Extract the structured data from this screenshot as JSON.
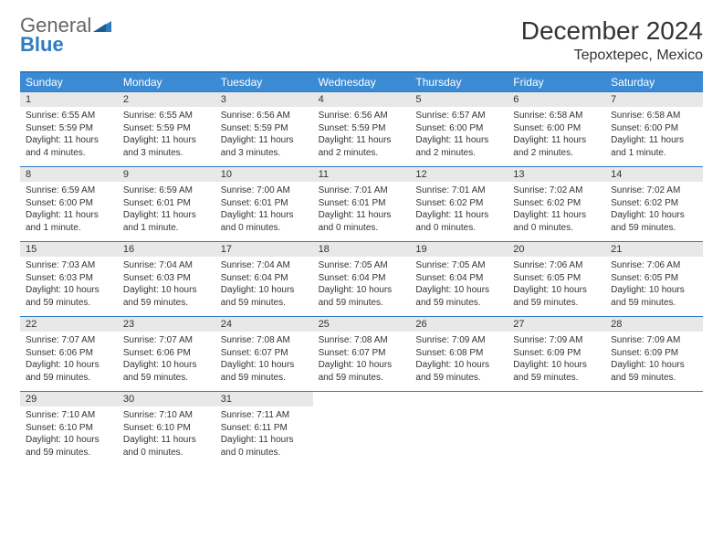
{
  "brand": {
    "part1": "General",
    "part2": "Blue"
  },
  "title": "December 2024",
  "location": "Tepoxtepec, Mexico",
  "colors": {
    "header_bar": "#3b8bd4",
    "rule": "#2e7bc0",
    "daynum_bg": "#e8e8e8",
    "text": "#333333",
    "brand_gray": "#666666",
    "brand_blue": "#2e7bc0"
  },
  "typography": {
    "title_fontsize": 28,
    "location_fontsize": 16,
    "weekday_fontsize": 12,
    "daynum_fontsize": 11,
    "body_fontsize": 10
  },
  "weekdays": [
    "Sunday",
    "Monday",
    "Tuesday",
    "Wednesday",
    "Thursday",
    "Friday",
    "Saturday"
  ],
  "weeks": [
    [
      {
        "n": "1",
        "sr": "Sunrise: 6:55 AM",
        "ss": "Sunset: 5:59 PM",
        "dl1": "Daylight: 11 hours",
        "dl2": "and 4 minutes."
      },
      {
        "n": "2",
        "sr": "Sunrise: 6:55 AM",
        "ss": "Sunset: 5:59 PM",
        "dl1": "Daylight: 11 hours",
        "dl2": "and 3 minutes."
      },
      {
        "n": "3",
        "sr": "Sunrise: 6:56 AM",
        "ss": "Sunset: 5:59 PM",
        "dl1": "Daylight: 11 hours",
        "dl2": "and 3 minutes."
      },
      {
        "n": "4",
        "sr": "Sunrise: 6:56 AM",
        "ss": "Sunset: 5:59 PM",
        "dl1": "Daylight: 11 hours",
        "dl2": "and 2 minutes."
      },
      {
        "n": "5",
        "sr": "Sunrise: 6:57 AM",
        "ss": "Sunset: 6:00 PM",
        "dl1": "Daylight: 11 hours",
        "dl2": "and 2 minutes."
      },
      {
        "n": "6",
        "sr": "Sunrise: 6:58 AM",
        "ss": "Sunset: 6:00 PM",
        "dl1": "Daylight: 11 hours",
        "dl2": "and 2 minutes."
      },
      {
        "n": "7",
        "sr": "Sunrise: 6:58 AM",
        "ss": "Sunset: 6:00 PM",
        "dl1": "Daylight: 11 hours",
        "dl2": "and 1 minute."
      }
    ],
    [
      {
        "n": "8",
        "sr": "Sunrise: 6:59 AM",
        "ss": "Sunset: 6:00 PM",
        "dl1": "Daylight: 11 hours",
        "dl2": "and 1 minute."
      },
      {
        "n": "9",
        "sr": "Sunrise: 6:59 AM",
        "ss": "Sunset: 6:01 PM",
        "dl1": "Daylight: 11 hours",
        "dl2": "and 1 minute."
      },
      {
        "n": "10",
        "sr": "Sunrise: 7:00 AM",
        "ss": "Sunset: 6:01 PM",
        "dl1": "Daylight: 11 hours",
        "dl2": "and 0 minutes."
      },
      {
        "n": "11",
        "sr": "Sunrise: 7:01 AM",
        "ss": "Sunset: 6:01 PM",
        "dl1": "Daylight: 11 hours",
        "dl2": "and 0 minutes."
      },
      {
        "n": "12",
        "sr": "Sunrise: 7:01 AM",
        "ss": "Sunset: 6:02 PM",
        "dl1": "Daylight: 11 hours",
        "dl2": "and 0 minutes."
      },
      {
        "n": "13",
        "sr": "Sunrise: 7:02 AM",
        "ss": "Sunset: 6:02 PM",
        "dl1": "Daylight: 11 hours",
        "dl2": "and 0 minutes."
      },
      {
        "n": "14",
        "sr": "Sunrise: 7:02 AM",
        "ss": "Sunset: 6:02 PM",
        "dl1": "Daylight: 10 hours",
        "dl2": "and 59 minutes."
      }
    ],
    [
      {
        "n": "15",
        "sr": "Sunrise: 7:03 AM",
        "ss": "Sunset: 6:03 PM",
        "dl1": "Daylight: 10 hours",
        "dl2": "and 59 minutes."
      },
      {
        "n": "16",
        "sr": "Sunrise: 7:04 AM",
        "ss": "Sunset: 6:03 PM",
        "dl1": "Daylight: 10 hours",
        "dl2": "and 59 minutes."
      },
      {
        "n": "17",
        "sr": "Sunrise: 7:04 AM",
        "ss": "Sunset: 6:04 PM",
        "dl1": "Daylight: 10 hours",
        "dl2": "and 59 minutes."
      },
      {
        "n": "18",
        "sr": "Sunrise: 7:05 AM",
        "ss": "Sunset: 6:04 PM",
        "dl1": "Daylight: 10 hours",
        "dl2": "and 59 minutes."
      },
      {
        "n": "19",
        "sr": "Sunrise: 7:05 AM",
        "ss": "Sunset: 6:04 PM",
        "dl1": "Daylight: 10 hours",
        "dl2": "and 59 minutes."
      },
      {
        "n": "20",
        "sr": "Sunrise: 7:06 AM",
        "ss": "Sunset: 6:05 PM",
        "dl1": "Daylight: 10 hours",
        "dl2": "and 59 minutes."
      },
      {
        "n": "21",
        "sr": "Sunrise: 7:06 AM",
        "ss": "Sunset: 6:05 PM",
        "dl1": "Daylight: 10 hours",
        "dl2": "and 59 minutes."
      }
    ],
    [
      {
        "n": "22",
        "sr": "Sunrise: 7:07 AM",
        "ss": "Sunset: 6:06 PM",
        "dl1": "Daylight: 10 hours",
        "dl2": "and 59 minutes."
      },
      {
        "n": "23",
        "sr": "Sunrise: 7:07 AM",
        "ss": "Sunset: 6:06 PM",
        "dl1": "Daylight: 10 hours",
        "dl2": "and 59 minutes."
      },
      {
        "n": "24",
        "sr": "Sunrise: 7:08 AM",
        "ss": "Sunset: 6:07 PM",
        "dl1": "Daylight: 10 hours",
        "dl2": "and 59 minutes."
      },
      {
        "n": "25",
        "sr": "Sunrise: 7:08 AM",
        "ss": "Sunset: 6:07 PM",
        "dl1": "Daylight: 10 hours",
        "dl2": "and 59 minutes."
      },
      {
        "n": "26",
        "sr": "Sunrise: 7:09 AM",
        "ss": "Sunset: 6:08 PM",
        "dl1": "Daylight: 10 hours",
        "dl2": "and 59 minutes."
      },
      {
        "n": "27",
        "sr": "Sunrise: 7:09 AM",
        "ss": "Sunset: 6:09 PM",
        "dl1": "Daylight: 10 hours",
        "dl2": "and 59 minutes."
      },
      {
        "n": "28",
        "sr": "Sunrise: 7:09 AM",
        "ss": "Sunset: 6:09 PM",
        "dl1": "Daylight: 10 hours",
        "dl2": "and 59 minutes."
      }
    ],
    [
      {
        "n": "29",
        "sr": "Sunrise: 7:10 AM",
        "ss": "Sunset: 6:10 PM",
        "dl1": "Daylight: 10 hours",
        "dl2": "and 59 minutes."
      },
      {
        "n": "30",
        "sr": "Sunrise: 7:10 AM",
        "ss": "Sunset: 6:10 PM",
        "dl1": "Daylight: 11 hours",
        "dl2": "and 0 minutes."
      },
      {
        "n": "31",
        "sr": "Sunrise: 7:11 AM",
        "ss": "Sunset: 6:11 PM",
        "dl1": "Daylight: 11 hours",
        "dl2": "and 0 minutes."
      },
      null,
      null,
      null,
      null
    ]
  ]
}
